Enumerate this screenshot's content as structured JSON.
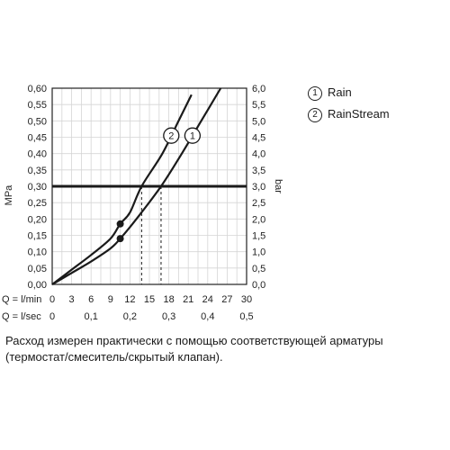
{
  "chart_data": {
    "type": "line",
    "left_axis": {
      "label": "MPa",
      "range": [
        0,
        0.6
      ],
      "ticks": [
        "0,00",
        "0,05",
        "0,10",
        "0,15",
        "0,20",
        "0,25",
        "0,30",
        "0,35",
        "0,40",
        "0,45",
        "0,50",
        "0,55",
        "0,60"
      ]
    },
    "right_axis": {
      "label": "bar",
      "range": [
        0,
        6
      ],
      "ticks": [
        "0,0",
        "0,5",
        "1,0",
        "1,5",
        "2,0",
        "2,5",
        "3,0",
        "3,5",
        "4,0",
        "4,5",
        "5,0",
        "5,5",
        "6,0"
      ]
    },
    "x_axis_lmin": {
      "label": "Q = l/min",
      "range": [
        0,
        30
      ],
      "ticks": [
        "0",
        "3",
        "6",
        "9",
        "12",
        "15",
        "18",
        "21",
        "24",
        "27",
        "30"
      ]
    },
    "x_axis_lsec": {
      "label": "Q = l/sec",
      "ticks": [
        "0",
        "0,1",
        "0,2",
        "0,3",
        "0,4",
        "0,5"
      ]
    },
    "series": [
      {
        "name": "Rain",
        "marker": "1",
        "x": [
          0,
          3,
          6,
          9,
          10.5,
          13,
          16.8,
          20,
          23,
          26
        ],
        "y": [
          0,
          0.035,
          0.07,
          0.11,
          0.14,
          0.2,
          0.3,
          0.4,
          0.5,
          0.6
        ]
      },
      {
        "name": "RainStream",
        "marker": "2",
        "x": [
          0,
          3,
          6,
          9,
          10.5,
          12,
          13.8,
          17,
          19.5,
          21.5
        ],
        "y": [
          0,
          0.045,
          0.09,
          0.14,
          0.185,
          0.22,
          0.3,
          0.4,
          0.5,
          0.58
        ]
      }
    ],
    "reference_line": {
      "y": 0.3
    },
    "points": [
      {
        "series": "RainStream",
        "x": 10.5,
        "y": 0.185
      },
      {
        "series": "Rain",
        "x": 10.5,
        "y": 0.14
      }
    ],
    "dashed_drops": [
      13.8,
      16.8
    ],
    "grid": true
  },
  "legend": [
    {
      "marker": "1",
      "text": "Rain"
    },
    {
      "marker": "2",
      "text": "RainStream"
    }
  ],
  "caption": "Расход измерен практически с помощью соответствующей арматуры (термостат/смеситель/скрытый клапан).",
  "colors": {
    "line": "#1a1a1a",
    "grid": "#d5d5d5",
    "frame": "#222222"
  }
}
